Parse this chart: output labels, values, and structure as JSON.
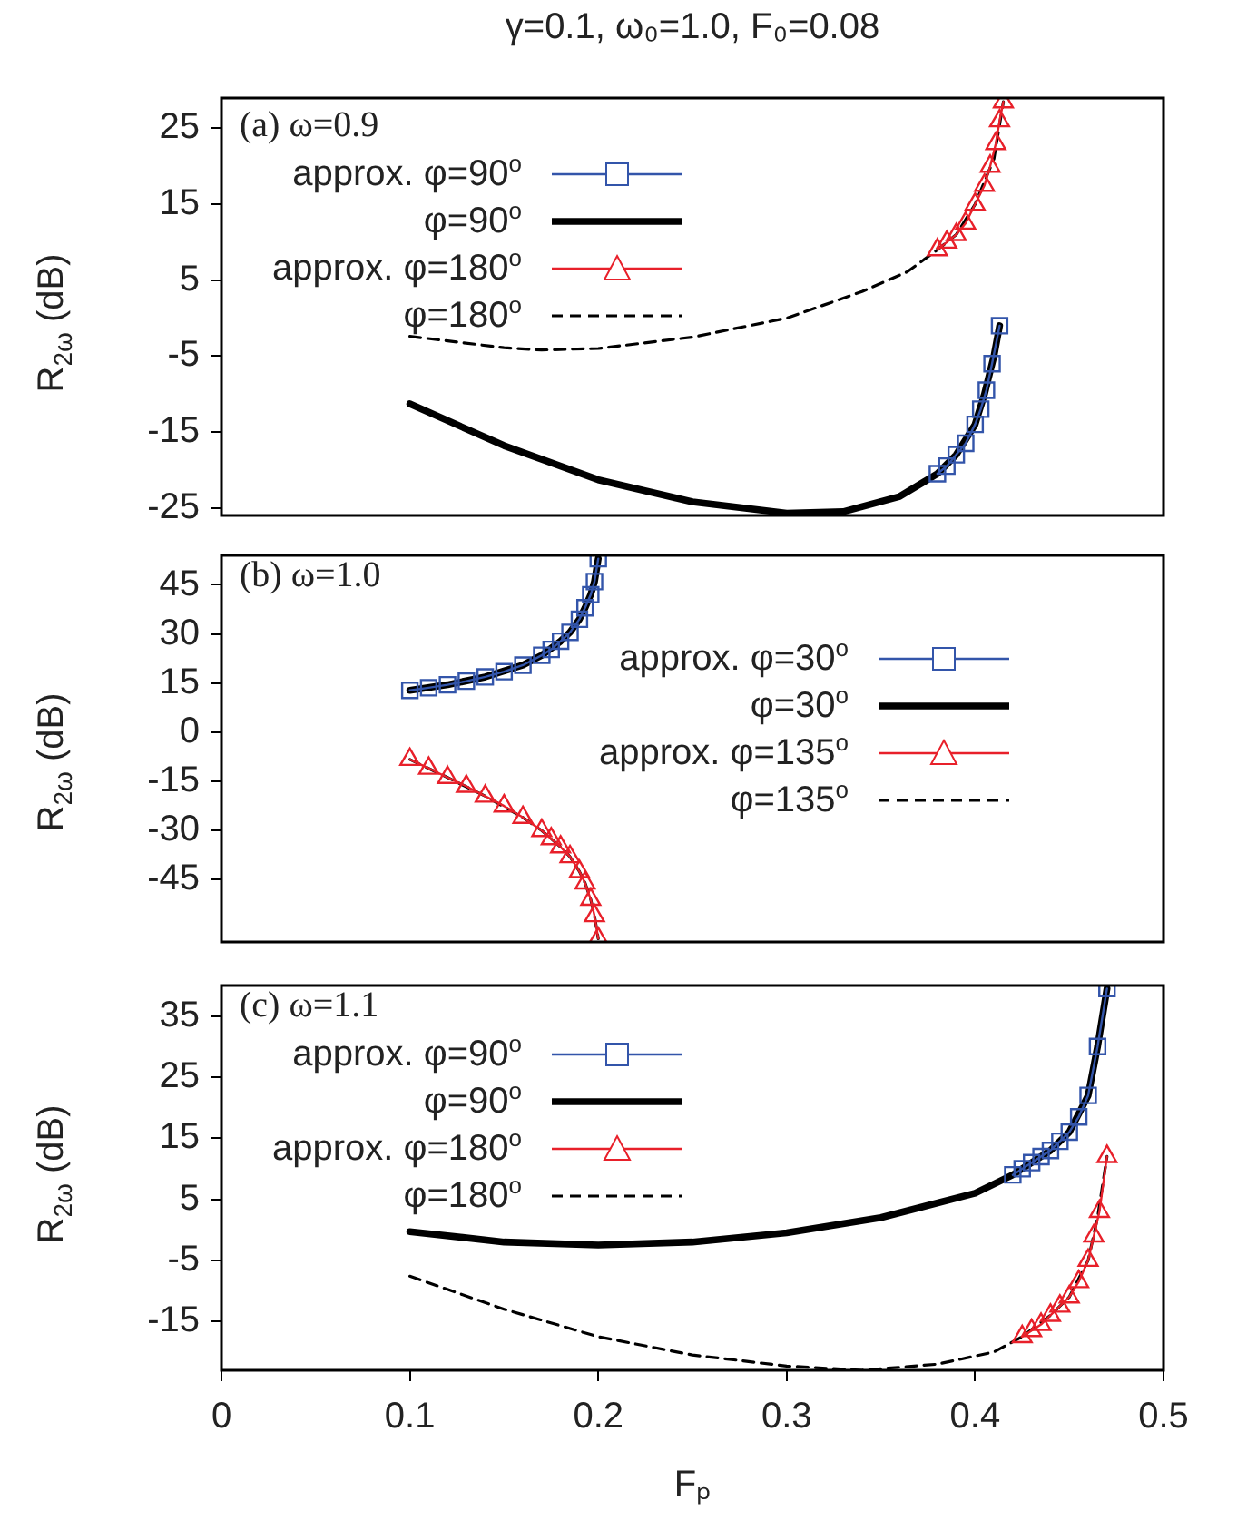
{
  "chart_data": [
    {
      "type": "line",
      "title": "γ=0.1, ω₀=1.0, F₀=0.08",
      "ylabel": "R$_{2ω}$ (dB)",
      "annotations": [
        "(a) ω=0.9"
      ],
      "legend": "top",
      "tick_labels": "y",
      "xlim": [
        0,
        0.5
      ],
      "xticks": [
        0,
        0.1,
        0.2,
        0.3,
        0.4,
        0.5
      ],
      "ylim": [
        -26,
        29
      ],
      "yticks": [
        -25,
        -15,
        -5,
        5,
        15,
        25
      ],
      "series": [
        {
          "name": "approx. φ=90$^{o}$",
          "color": "#3355aa",
          "marker": "square",
          "x": [
            0.38,
            0.385,
            0.39,
            0.395,
            0.4,
            0.403,
            0.406,
            0.409,
            0.413
          ],
          "values": [
            -20.5,
            -19.5,
            -18,
            -16.5,
            -14,
            -12,
            -9.5,
            -6,
            -1
          ]
        },
        {
          "name": "φ=90$^{o}$",
          "color": "#000000",
          "marker": "none",
          "line_style": "solid",
          "x": [
            0.1,
            0.15,
            0.2,
            0.25,
            0.3,
            0.33,
            0.36,
            0.38,
            0.39,
            0.4,
            0.405,
            0.41,
            0.413
          ],
          "values": [
            -11.3,
            -16.8,
            -21.3,
            -24.2,
            -25.7,
            -25.5,
            -23.5,
            -20.5,
            -18,
            -14,
            -10,
            -5,
            -1
          ]
        },
        {
          "name": "approx. φ=180$^{o}$",
          "color": "#e8202a",
          "marker": "triangle",
          "x": [
            0.38,
            0.385,
            0.39,
            0.395,
            0.4,
            0.405,
            0.408,
            0.411,
            0.413,
            0.415
          ],
          "values": [
            9,
            10,
            11,
            12.5,
            15,
            17.5,
            20,
            23,
            26,
            28.5
          ]
        },
        {
          "name": "φ=180$^{o}$",
          "color": "#000000",
          "marker": "none",
          "line_style": "dashed",
          "x": [
            0.1,
            0.15,
            0.17,
            0.2,
            0.25,
            0.3,
            0.34,
            0.364,
            0.38,
            0.39,
            0.4,
            0.41,
            0.415
          ],
          "values": [
            -2.4,
            -3.9,
            -4.2,
            -4,
            -2.5,
            0,
            3.5,
            6.1,
            9,
            11,
            15,
            21,
            28.5
          ]
        }
      ]
    },
    {
      "type": "line",
      "ylabel": "R$_{2ω}$ (dB)",
      "annotations": [
        "(b) ω=1.0"
      ],
      "legend": "right",
      "tick_labels": "y",
      "xlim": [
        0,
        0.5
      ],
      "xticks": [
        0,
        0.1,
        0.2,
        0.3,
        0.4,
        0.5
      ],
      "ylim": [
        -64,
        54
      ],
      "yticks": [
        -45,
        -30,
        -15,
        0,
        15,
        30,
        45
      ],
      "series": [
        {
          "name": "approx. φ=30$^{o}$",
          "color": "#3355aa",
          "marker": "square",
          "x": [
            0.1,
            0.11,
            0.12,
            0.13,
            0.14,
            0.15,
            0.16,
            0.17,
            0.175,
            0.18,
            0.185,
            0.19,
            0.193,
            0.196,
            0.198,
            0.2
          ],
          "values": [
            12.8,
            13.6,
            14.5,
            15.6,
            16.9,
            18.5,
            20.5,
            23.5,
            25.3,
            27.8,
            30.5,
            34.5,
            38,
            42,
            46,
            53
          ]
        },
        {
          "name": "φ=30$^{o}$",
          "color": "#000000",
          "marker": "none",
          "line_style": "solid",
          "x": [
            0.1,
            0.12,
            0.14,
            0.16,
            0.17,
            0.18,
            0.185,
            0.19,
            0.193,
            0.196,
            0.198,
            0.2
          ],
          "values": [
            12.8,
            14.5,
            16.9,
            20.5,
            23.5,
            27.8,
            30.5,
            34.5,
            38,
            42,
            46,
            53
          ]
        },
        {
          "name": "approx. φ=135$^{o}$",
          "color": "#e8202a",
          "marker": "triangle",
          "x": [
            0.1,
            0.11,
            0.12,
            0.13,
            0.14,
            0.15,
            0.16,
            0.17,
            0.175,
            0.18,
            0.185,
            0.19,
            0.193,
            0.196,
            0.198,
            0.2
          ],
          "values": [
            -8.3,
            -11,
            -13.8,
            -16.5,
            -19.5,
            -22.5,
            -26,
            -30,
            -32.5,
            -35,
            -38,
            -42.5,
            -46,
            -51,
            -56,
            -63
          ]
        },
        {
          "name": "φ=135$^{o}$",
          "color": "#000000",
          "marker": "none",
          "line_style": "dashed",
          "x": [
            0.1,
            0.12,
            0.14,
            0.16,
            0.17,
            0.18,
            0.185,
            0.19,
            0.193,
            0.196,
            0.198,
            0.2
          ],
          "values": [
            -8.3,
            -13.8,
            -19.5,
            -26,
            -30,
            -35,
            -38,
            -42.5,
            -46,
            -51,
            -56,
            -63
          ]
        }
      ]
    },
    {
      "type": "line",
      "xlabel": "Fₚ",
      "ylabel": "R$_{2ω}$ (dB)",
      "annotations": [
        "(c) ω=1.1"
      ],
      "legend": "top",
      "xlim": [
        0,
        0.5
      ],
      "xticks": [
        0,
        0.1,
        0.2,
        0.3,
        0.4,
        0.5
      ],
      "ylim": [
        -23,
        40
      ],
      "yticks": [
        -15,
        -5,
        5,
        15,
        25,
        35
      ],
      "series": [
        {
          "name": "approx. φ=90$^{o}$",
          "color": "#3355aa",
          "marker": "square",
          "x": [
            0.42,
            0.425,
            0.43,
            0.435,
            0.44,
            0.445,
            0.45,
            0.455,
            0.46,
            0.465,
            0.47
          ],
          "values": [
            9,
            10,
            11,
            12,
            13,
            14.5,
            16,
            18.5,
            22,
            30,
            39.5
          ]
        },
        {
          "name": "φ=90$^{o}$",
          "color": "#000000",
          "marker": "none",
          "line_style": "solid",
          "x": [
            0.1,
            0.15,
            0.2,
            0.25,
            0.3,
            0.35,
            0.4,
            0.42,
            0.44,
            0.45,
            0.46,
            0.465,
            0.47
          ],
          "values": [
            -0.3,
            -2,
            -2.5,
            -2,
            -0.5,
            2,
            6,
            9,
            13,
            16,
            22,
            30,
            39.5
          ]
        },
        {
          "name": "approx. φ=180$^{o}$",
          "color": "#e8202a",
          "marker": "triangle",
          "x": [
            0.425,
            0.43,
            0.435,
            0.44,
            0.445,
            0.45,
            0.455,
            0.46,
            0.463,
            0.466,
            0.47
          ],
          "values": [
            -17.5,
            -16.5,
            -15.5,
            -14,
            -12.5,
            -11,
            -8.5,
            -5,
            -1,
            3,
            12
          ]
        },
        {
          "name": "φ=180$^{o}$",
          "color": "#000000",
          "marker": "none",
          "line_style": "dashed",
          "x": [
            0.1,
            0.15,
            0.2,
            0.25,
            0.3,
            0.34,
            0.38,
            0.41,
            0.425,
            0.44,
            0.45,
            0.46,
            0.465,
            0.47
          ],
          "values": [
            -7.6,
            -13,
            -17.5,
            -20.5,
            -22.3,
            -23,
            -22,
            -20,
            -17.5,
            -14,
            -11,
            -5,
            2,
            12
          ]
        }
      ]
    }
  ]
}
